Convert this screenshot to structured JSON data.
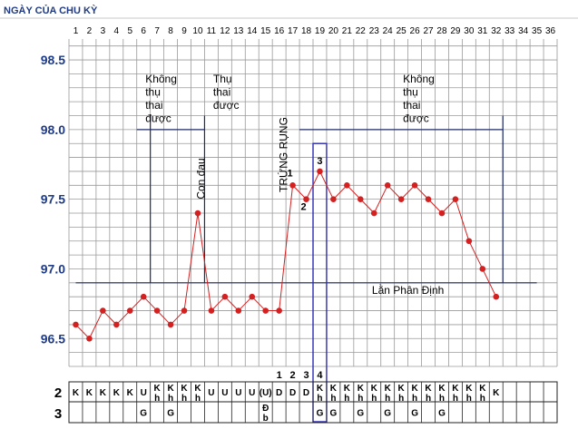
{
  "title": "NGÀY CỦA CHU KỲ",
  "chart_data": {
    "type": "line",
    "x": [
      1,
      2,
      3,
      4,
      5,
      6,
      7,
      8,
      9,
      10,
      11,
      12,
      13,
      14,
      15,
      16,
      17,
      18,
      19,
      20,
      21,
      22,
      23,
      24,
      25,
      26,
      27,
      28,
      29,
      30,
      31,
      32
    ],
    "values": [
      96.6,
      96.5,
      96.7,
      96.6,
      96.7,
      96.8,
      96.7,
      96.6,
      96.7,
      97.4,
      96.7,
      96.8,
      96.7,
      96.8,
      96.7,
      96.7,
      97.6,
      97.5,
      97.7,
      97.5,
      97.6,
      97.5,
      97.4,
      97.6,
      97.5,
      97.6,
      97.5,
      97.4,
      97.5,
      97.2,
      97.0,
      96.8
    ],
    "x_ticks": [
      "1",
      "2",
      "3",
      "4",
      "5",
      "6",
      "7",
      "8",
      "9",
      "10",
      "11",
      "12",
      "13",
      "14",
      "15",
      "16",
      "17",
      "18",
      "19",
      "20",
      "21",
      "22",
      "23",
      "24",
      "25",
      "26",
      "27",
      "28",
      "29",
      "30",
      "31",
      "32",
      "33",
      "34",
      "35",
      "36"
    ],
    "y_ticks": [
      "98.5",
      "98.0",
      "97.5",
      "97.0",
      "96.5"
    ],
    "xlim": [
      1,
      36
    ],
    "ylim": [
      96.3,
      98.65
    ],
    "grid": true,
    "coverline_label": "Lằn Phân Định",
    "coverline_value": 96.9,
    "point_labels": [
      {
        "day": 17,
        "text": "1"
      },
      {
        "day": 18,
        "text": "2"
      },
      {
        "day": 19,
        "text": "3"
      }
    ],
    "annotations": [
      {
        "day": 6.5,
        "temp": 98.35,
        "text": "Không\nthụ\nthai\nđược"
      },
      {
        "day": 11.5,
        "temp": 98.35,
        "text": "Thụ\nthai\nđược"
      },
      {
        "day": 25.5,
        "temp": 98.35,
        "text": "Không\nthụ\nthai\nđược"
      }
    ],
    "vertical_texts": [
      {
        "day": 10.5,
        "temp": 97.5,
        "text": "Con đau"
      },
      {
        "day": 16.6,
        "temp": 97.55,
        "text": "TRỨNG RỤNG"
      }
    ],
    "marker_lines": [
      6,
      10,
      32
    ],
    "highlight_day": 19,
    "color": "#d32020",
    "grid_color": "#9a9a9a",
    "line_color": "#1f2a66"
  },
  "table": {
    "row_labels": [
      "2",
      "3"
    ],
    "peak_labels": [
      {
        "day": 16,
        "text": "1"
      },
      {
        "day": 17,
        "text": "2"
      },
      {
        "day": 18,
        "text": "3"
      },
      {
        "day": 19,
        "text": "4"
      }
    ],
    "row2": [
      "K",
      "K",
      "K",
      "K",
      "K",
      "U",
      "K\nh",
      "K\nh",
      "K\nh",
      "K\nh",
      "U",
      "U",
      "U",
      "U",
      "(U)",
      "D",
      "D",
      "D",
      "K\nh",
      "K\nh",
      "K\nh",
      "K\nh",
      "K\nh",
      "K\nh",
      "K\nh",
      "K\nh",
      "K\nh",
      "K\nh",
      "K\nh",
      "K\nh",
      "K\nh",
      "K",
      "",
      "",
      "",
      ""
    ],
    "row3": [
      "",
      "",
      "",
      "",
      "",
      "G",
      "",
      "G",
      "",
      "",
      "",
      "",
      "",
      "",
      "Đ\nb",
      "",
      "",
      "",
      "G",
      "G",
      "",
      "G",
      "",
      "G",
      "",
      "G",
      "",
      "G",
      "",
      "",
      "",
      "",
      "",
      "",
      "",
      ""
    ]
  }
}
